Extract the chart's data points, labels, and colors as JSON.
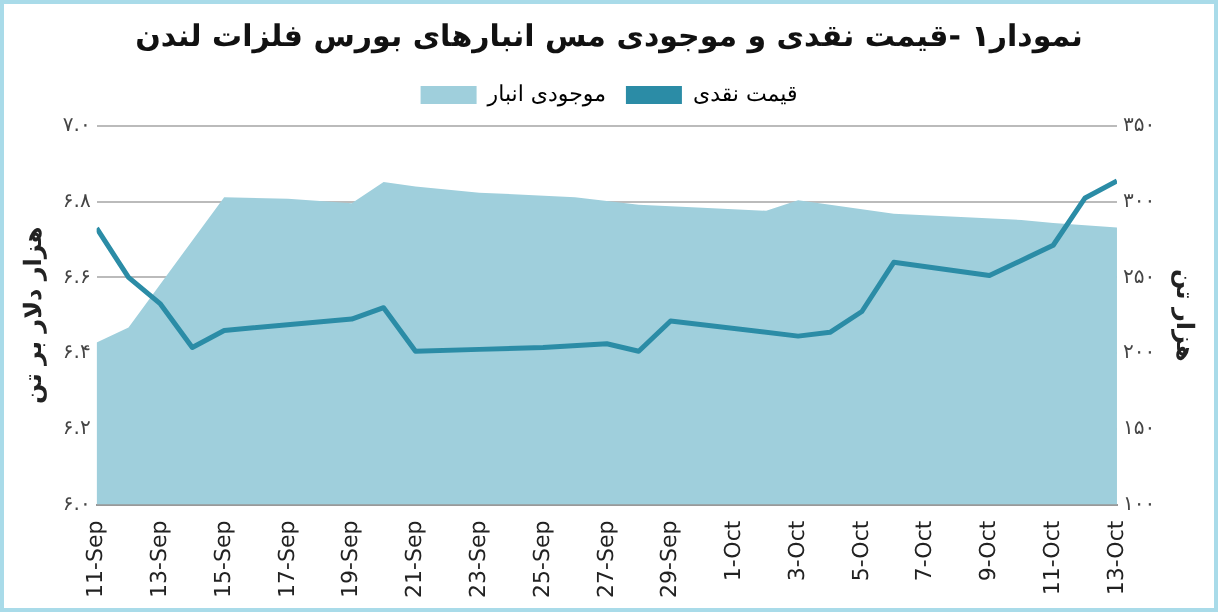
{
  "chart_data": {
    "type": "line",
    "title": "نمودار۱ -قیمت نقدی و موجودی مس انبارهای بورس فلزات لندن",
    "ylabel": "هزار دلار بر تن",
    "y2label": "هزار تن",
    "xlim": [
      "--09-11",
      "--10-13"
    ],
    "xticks": [
      {
        "value": "--09-11",
        "label": "11-Sep"
      },
      {
        "value": "--09-13",
        "label": "13-Sep"
      },
      {
        "value": "--09-15",
        "label": "15-Sep"
      },
      {
        "value": "--09-17",
        "label": "17-Sep"
      },
      {
        "value": "--09-19",
        "label": "19-Sep"
      },
      {
        "value": "--09-21",
        "label": "21-Sep"
      },
      {
        "value": "--09-23",
        "label": "23-Sep"
      },
      {
        "value": "--09-25",
        "label": "25-Sep"
      },
      {
        "value": "--09-27",
        "label": "27-Sep"
      },
      {
        "value": "--09-29",
        "label": "29-Sep"
      },
      {
        "value": "--10-01",
        "label": "1-Oct"
      },
      {
        "value": "--10-03",
        "label": "3-Oct"
      },
      {
        "value": "--10-05",
        "label": "5-Oct"
      },
      {
        "value": "--10-07",
        "label": "7-Oct"
      },
      {
        "value": "--10-09",
        "label": "9-Oct"
      },
      {
        "value": "--10-11",
        "label": "11-Oct"
      },
      {
        "value": "--10-13",
        "label": "13-Oct"
      }
    ],
    "ylim": [
      6.0,
      7.0
    ],
    "yticks": [
      {
        "value": 6.0,
        "label": "۶.۰"
      },
      {
        "value": 6.2,
        "label": "۶.۲"
      },
      {
        "value": 6.4,
        "label": "۶.۴"
      },
      {
        "value": 6.6,
        "label": "۶.۶"
      },
      {
        "value": 6.8,
        "label": "۶.۸"
      },
      {
        "value": 7.0,
        "label": "۷.۰"
      }
    ],
    "y2lim": [
      100,
      350
    ],
    "y2ticks": [
      {
        "value": 100,
        "label": "۱۰۰"
      },
      {
        "value": 150,
        "label": "۱۵۰"
      },
      {
        "value": 200,
        "label": "۲۰۰"
      },
      {
        "value": 250,
        "label": "۲۵۰"
      },
      {
        "value": 300,
        "label": "۳۰۰"
      },
      {
        "value": 350,
        "label": "۳۵۰"
      }
    ],
    "grid": "y",
    "legend": "top",
    "marker": "none",
    "series": [
      {
        "name": "موجودی انبار",
        "type": "area",
        "axis": "y2",
        "color": "#9fcfdc",
        "x": [
          "--09-11",
          "--09-12",
          "--09-15",
          "--09-17",
          "--09-19",
          "--09-20",
          "--09-21",
          "--09-23",
          "--09-26",
          "--09-28",
          "--09-30",
          "--10-02",
          "--10-03",
          "--10-06",
          "--10-10",
          "--10-11",
          "--10-13"
        ],
        "values": [
          207,
          217,
          303,
          302,
          299,
          313,
          310,
          306,
          303,
          298,
          296,
          294,
          301,
          292,
          288,
          286,
          283
        ]
      },
      {
        "name": "قیمت نقدی",
        "type": "line",
        "color": "#2b8ca6",
        "x": [
          "--09-11",
          "--09-12",
          "--09-13",
          "--09-14",
          "--09-15",
          "--09-19",
          "--09-20",
          "--09-21",
          "--09-23",
          "--09-25",
          "--09-27",
          "--09-28",
          "--09-29",
          "--10-03",
          "--10-04",
          "--10-05",
          "--10-06",
          "--10-09",
          "--10-10",
          "--10-11",
          "--10-12",
          "--10-13"
        ],
        "values": [
          6.73,
          6.6,
          6.53,
          6.415,
          6.46,
          6.49,
          6.52,
          6.405,
          6.41,
          6.415,
          6.425,
          6.405,
          6.485,
          6.445,
          6.455,
          6.51,
          6.64,
          6.605,
          6.645,
          6.685,
          6.81,
          6.855
        ]
      }
    ]
  }
}
